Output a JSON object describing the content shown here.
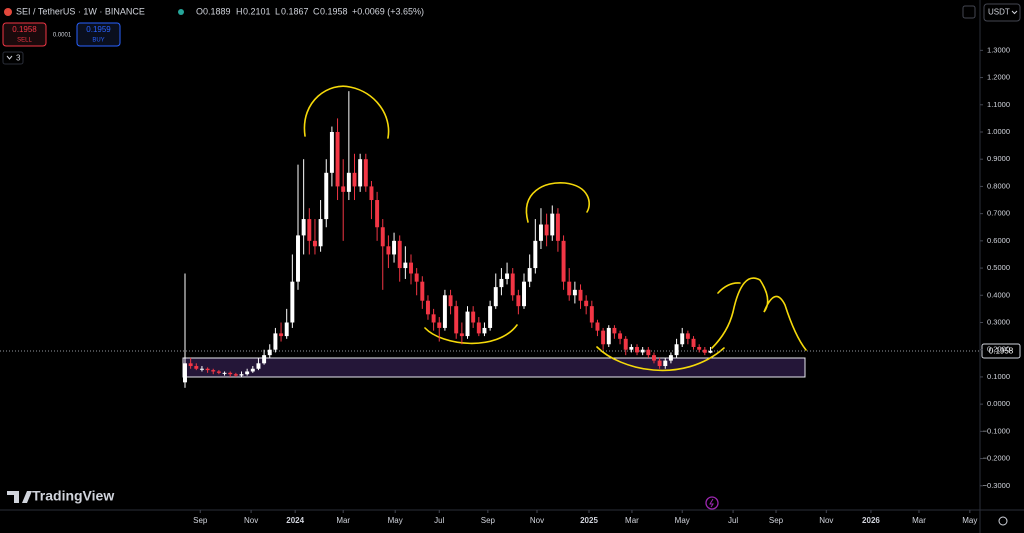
{
  "header": {
    "symbol": "SEI / TetherUS · 1W · BINANCE",
    "ohlc_labels": [
      "O",
      "H",
      "L",
      "C"
    ],
    "change": "+0.0069 (+3.65%)"
  },
  "trade": {
    "sell": {
      "price": 0.1958,
      "label": "SELL"
    },
    "buy": {
      "price": 0.1959,
      "label": "BUY"
    },
    "spread": 0.0001
  },
  "indicator_count": 3,
  "currency": "USDT",
  "brand": "TradingView",
  "chart_data": {
    "type": "candlestick",
    "up_color": "#ffffff",
    "down_color": "#f23645",
    "grid": false,
    "xlim": [
      -32.74,
      140.7
    ],
    "xticks": [
      {
        "value": 2.7,
        "label": "Sep"
      },
      {
        "value": 11.7,
        "label": "Nov"
      },
      {
        "value": 19.5,
        "label": "2024"
      },
      {
        "value": 28.0,
        "label": "Mar"
      },
      {
        "value": 37.2,
        "label": "May"
      },
      {
        "value": 45.0,
        "label": "Jul"
      },
      {
        "value": 53.6,
        "label": "Sep"
      },
      {
        "value": 62.3,
        "label": "Nov"
      },
      {
        "value": 71.5,
        "label": "2025"
      },
      {
        "value": 79.1,
        "label": "Mar"
      },
      {
        "value": 88.0,
        "label": "May"
      },
      {
        "value": 97.0,
        "label": "Jul"
      },
      {
        "value": 104.6,
        "label": "Sep"
      },
      {
        "value": 113.5,
        "label": "Nov"
      },
      {
        "value": 121.4,
        "label": "2026"
      },
      {
        "value": 129.9,
        "label": "Mar"
      },
      {
        "value": 138.9,
        "label": "May"
      }
    ],
    "ylim": [
      -0.389,
      1.485
    ],
    "yticks": [
      {
        "value": -0.3,
        "label": "−0.3000"
      },
      {
        "value": -0.2,
        "label": "−0.2000"
      },
      {
        "value": -0.1,
        "label": "−0.1000"
      },
      {
        "value": 0,
        "label": "0.0000"
      },
      {
        "value": 0.1,
        "label": "0.1000"
      },
      {
        "value": 0.2,
        "label": "0.2000"
      },
      {
        "value": 0.3,
        "label": "0.3000"
      },
      {
        "value": 0.4,
        "label": "0.4000"
      },
      {
        "value": 0.5,
        "label": "0.5000"
      },
      {
        "value": 0.6,
        "label": "0.6000"
      },
      {
        "value": 0.7,
        "label": "0.7000"
      },
      {
        "value": 0.8,
        "label": "0.8000"
      },
      {
        "value": 0.9,
        "label": "0.9000"
      },
      {
        "value": 1.0,
        "label": "1.0000"
      },
      {
        "value": 1.1,
        "label": "1.1000"
      },
      {
        "value": 1.2,
        "label": "1.2000"
      },
      {
        "value": 1.3,
        "label": "1.3000"
      }
    ],
    "open": [
      0.08,
      0.15,
      0.14,
      0.13,
      0.13,
      0.125,
      0.12,
      0.115,
      0.115,
      0.11,
      0.105,
      0.11,
      0.12,
      0.13,
      0.15,
      0.18,
      0.2,
      0.26,
      0.25,
      0.3,
      0.45,
      0.62,
      0.68,
      0.6,
      0.58,
      0.68,
      0.85,
      1.0,
      0.8,
      0.78,
      0.85,
      0.8,
      0.9,
      0.8,
      0.75,
      0.65,
      0.58,
      0.55,
      0.6,
      0.5,
      0.52,
      0.48,
      0.45,
      0.38,
      0.33,
      0.3,
      0.28,
      0.4,
      0.36,
      0.26,
      0.25,
      0.34,
      0.3,
      0.26,
      0.28,
      0.36,
      0.43,
      0.46,
      0.48,
      0.4,
      0.36,
      0.45,
      0.5,
      0.6,
      0.66,
      0.62,
      0.7,
      0.6,
      0.45,
      0.4,
      0.42,
      0.38,
      0.36,
      0.3,
      0.27,
      0.22,
      0.28,
      0.26,
      0.24,
      0.2,
      0.21,
      0.19,
      0.2,
      0.18,
      0.16,
      0.14,
      0.16,
      0.18,
      0.22,
      0.26,
      0.24,
      0.21,
      0.2,
      0.1889
    ],
    "high": [
      0.48,
      0.17,
      0.15,
      0.14,
      0.135,
      0.13,
      0.125,
      0.12,
      0.12,
      0.115,
      0.12,
      0.13,
      0.14,
      0.17,
      0.2,
      0.22,
      0.28,
      0.3,
      0.35,
      0.55,
      0.88,
      0.9,
      0.72,
      0.68,
      0.75,
      0.9,
      1.02,
      1.05,
      0.9,
      1.15,
      0.92,
      0.92,
      0.92,
      0.82,
      0.78,
      0.68,
      0.62,
      0.63,
      0.62,
      0.58,
      0.55,
      0.5,
      0.47,
      0.4,
      0.35,
      0.32,
      0.42,
      0.42,
      0.38,
      0.3,
      0.36,
      0.36,
      0.32,
      0.3,
      0.38,
      0.48,
      0.5,
      0.52,
      0.5,
      0.42,
      0.48,
      0.55,
      0.68,
      0.72,
      0.7,
      0.73,
      0.72,
      0.62,
      0.5,
      0.45,
      0.44,
      0.4,
      0.38,
      0.31,
      0.28,
      0.29,
      0.29,
      0.27,
      0.25,
      0.22,
      0.22,
      0.21,
      0.21,
      0.19,
      0.17,
      0.17,
      0.19,
      0.24,
      0.28,
      0.27,
      0.25,
      0.22,
      0.21,
      0.2101
    ],
    "low": [
      0.06,
      0.13,
      0.125,
      0.12,
      0.115,
      0.11,
      0.11,
      0.105,
      0.1,
      0.1,
      0.1,
      0.105,
      0.115,
      0.125,
      0.145,
      0.17,
      0.19,
      0.23,
      0.24,
      0.28,
      0.42,
      0.55,
      0.55,
      0.55,
      0.56,
      0.65,
      0.8,
      0.75,
      0.6,
      0.75,
      0.75,
      0.78,
      0.78,
      0.68,
      0.6,
      0.42,
      0.5,
      0.52,
      0.45,
      0.46,
      0.44,
      0.4,
      0.35,
      0.31,
      0.27,
      0.23,
      0.27,
      0.33,
      0.24,
      0.22,
      0.24,
      0.28,
      0.25,
      0.25,
      0.27,
      0.35,
      0.4,
      0.44,
      0.38,
      0.33,
      0.35,
      0.43,
      0.48,
      0.57,
      0.58,
      0.6,
      0.56,
      0.42,
      0.38,
      0.37,
      0.35,
      0.33,
      0.28,
      0.25,
      0.2,
      0.21,
      0.24,
      0.22,
      0.18,
      0.19,
      0.18,
      0.18,
      0.17,
      0.15,
      0.13,
      0.13,
      0.15,
      0.17,
      0.21,
      0.22,
      0.2,
      0.19,
      0.18,
      0.1867
    ],
    "close": [
      0.15,
      0.14,
      0.13,
      0.13,
      0.125,
      0.12,
      0.115,
      0.115,
      0.11,
      0.105,
      0.11,
      0.12,
      0.13,
      0.15,
      0.18,
      0.2,
      0.26,
      0.25,
      0.3,
      0.45,
      0.62,
      0.68,
      0.6,
      0.58,
      0.68,
      0.85,
      1.0,
      0.8,
      0.78,
      0.85,
      0.8,
      0.9,
      0.8,
      0.75,
      0.65,
      0.58,
      0.55,
      0.6,
      0.5,
      0.52,
      0.48,
      0.45,
      0.38,
      0.33,
      0.3,
      0.28,
      0.4,
      0.36,
      0.26,
      0.25,
      0.34,
      0.3,
      0.26,
      0.28,
      0.36,
      0.43,
      0.46,
      0.48,
      0.4,
      0.36,
      0.45,
      0.5,
      0.6,
      0.66,
      0.62,
      0.7,
      0.6,
      0.45,
      0.4,
      0.42,
      0.38,
      0.36,
      0.3,
      0.27,
      0.22,
      0.28,
      0.26,
      0.24,
      0.2,
      0.21,
      0.19,
      0.2,
      0.18,
      0.16,
      0.14,
      0.16,
      0.18,
      0.22,
      0.26,
      0.24,
      0.21,
      0.2,
      0.1889,
      0.1958
    ]
  }
}
